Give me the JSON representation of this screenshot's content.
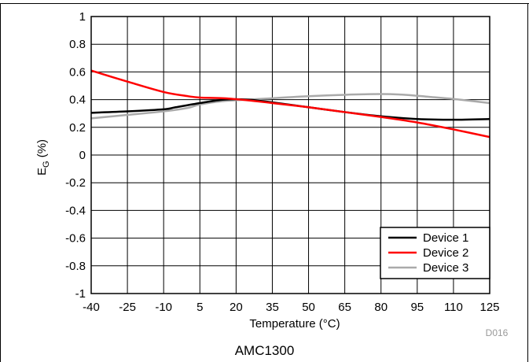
{
  "chart_data": {
    "type": "line",
    "title": "",
    "xlabel": "Temperature (°C)",
    "ylabel": {
      "main": "E",
      "sub": "G",
      "suffix": " (%)"
    },
    "xlim": [
      -40,
      125
    ],
    "ylim": [
      -1,
      1
    ],
    "xticks": [
      "-40",
      "-25",
      "-10",
      "5",
      "20",
      "35",
      "50",
      "65",
      "80",
      "95",
      "110",
      "125"
    ],
    "yticks": [
      "1",
      "0.8",
      "0.6",
      "0.4",
      "0.2",
      "0",
      "-0.2",
      "-0.4",
      "-0.6",
      "-0.8",
      "-1"
    ],
    "grid": true,
    "legend_position": "bottom-right",
    "series": [
      {
        "name": "Device 1",
        "color": "#000000",
        "x": [
          -40,
          -25,
          -10,
          -5,
          5,
          15,
          25,
          35,
          50,
          65,
          80,
          95,
          110,
          125
        ],
        "y": [
          0.305,
          0.315,
          0.33,
          0.345,
          0.375,
          0.4,
          0.4,
          0.38,
          0.345,
          0.31,
          0.28,
          0.26,
          0.255,
          0.26
        ]
      },
      {
        "name": "Device 2",
        "color": "#ff0000",
        "x": [
          -40,
          -25,
          -10,
          0,
          5,
          15,
          25,
          35,
          50,
          65,
          80,
          95,
          110,
          125
        ],
        "y": [
          0.61,
          0.53,
          0.455,
          0.425,
          0.415,
          0.41,
          0.395,
          0.375,
          0.345,
          0.31,
          0.275,
          0.235,
          0.185,
          0.13
        ]
      },
      {
        "name": "Device 3",
        "color": "#aaaaaa",
        "x": [
          -40,
          -25,
          -10,
          0,
          5,
          15,
          25,
          35,
          50,
          65,
          80,
          90,
          100,
          110,
          125
        ],
        "y": [
          0.265,
          0.29,
          0.315,
          0.34,
          0.365,
          0.39,
          0.4,
          0.41,
          0.425,
          0.435,
          0.44,
          0.435,
          0.42,
          0.405,
          0.375
        ]
      }
    ]
  },
  "figure_id": "D016",
  "caption": "AMC1300"
}
